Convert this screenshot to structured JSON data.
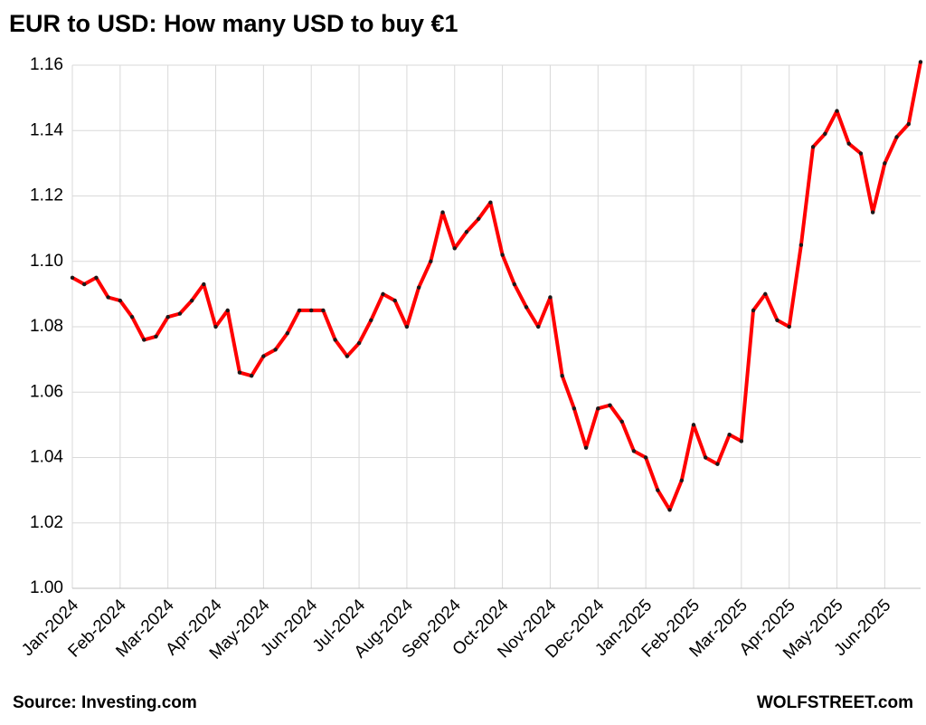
{
  "chart_data": {
    "type": "line",
    "title": "EUR to USD: How many USD to buy €1",
    "source": "Source: Investing.com",
    "credit": "WOLFSTREET.com",
    "categories": [
      "Jan-2024",
      null,
      null,
      null,
      "Feb-2024",
      null,
      null,
      null,
      "Mar-2024",
      null,
      null,
      null,
      "Apr-2024",
      null,
      null,
      null,
      "May-2024",
      null,
      null,
      null,
      "Jun-2024",
      null,
      null,
      null,
      "Jul-2024",
      null,
      null,
      null,
      "Aug-2024",
      null,
      null,
      null,
      "Sep-2024",
      null,
      null,
      null,
      "Oct-2024",
      null,
      null,
      null,
      "Nov-2024",
      null,
      null,
      null,
      "Dec-2024",
      null,
      null,
      null,
      "Jan-2025",
      null,
      null,
      null,
      "Feb-2025",
      null,
      null,
      null,
      "Mar-2025",
      null,
      null,
      null,
      "Apr-2025",
      null,
      null,
      null,
      "May-2025",
      null,
      null,
      null,
      "Jun-2025",
      null,
      null,
      null
    ],
    "series": [
      {
        "color": "#ff0000",
        "marker_color": "#1a1a1a",
        "values": [
          1.095,
          1.093,
          1.095,
          1.089,
          1.088,
          1.083,
          1.076,
          1.077,
          1.083,
          1.084,
          1.088,
          1.093,
          1.08,
          1.085,
          1.066,
          1.065,
          1.071,
          1.073,
          1.078,
          1.085,
          1.085,
          1.085,
          1.076,
          1.071,
          1.075,
          1.082,
          1.09,
          1.088,
          1.08,
          1.092,
          1.1,
          1.115,
          1.104,
          1.109,
          1.113,
          1.118,
          1.102,
          1.093,
          1.086,
          1.08,
          1.089,
          1.065,
          1.055,
          1.043,
          1.055,
          1.056,
          1.051,
          1.042,
          1.04,
          1.03,
          1.024,
          1.033,
          1.05,
          1.04,
          1.038,
          1.047,
          1.045,
          1.085,
          1.09,
          1.082,
          1.08,
          1.105,
          1.135,
          1.139,
          1.146,
          1.136,
          1.133,
          1.115,
          1.13,
          1.138,
          1.142,
          1.161
        ]
      }
    ],
    "ylim": [
      1.0,
      1.16
    ],
    "yticks": [
      {
        "value": 1.0,
        "label": "1.00"
      },
      1.02,
      1.04,
      1.06,
      1.08,
      {
        "value": 1.1,
        "label": "1.10"
      },
      1.12,
      1.14,
      1.16
    ],
    "grid": true
  }
}
